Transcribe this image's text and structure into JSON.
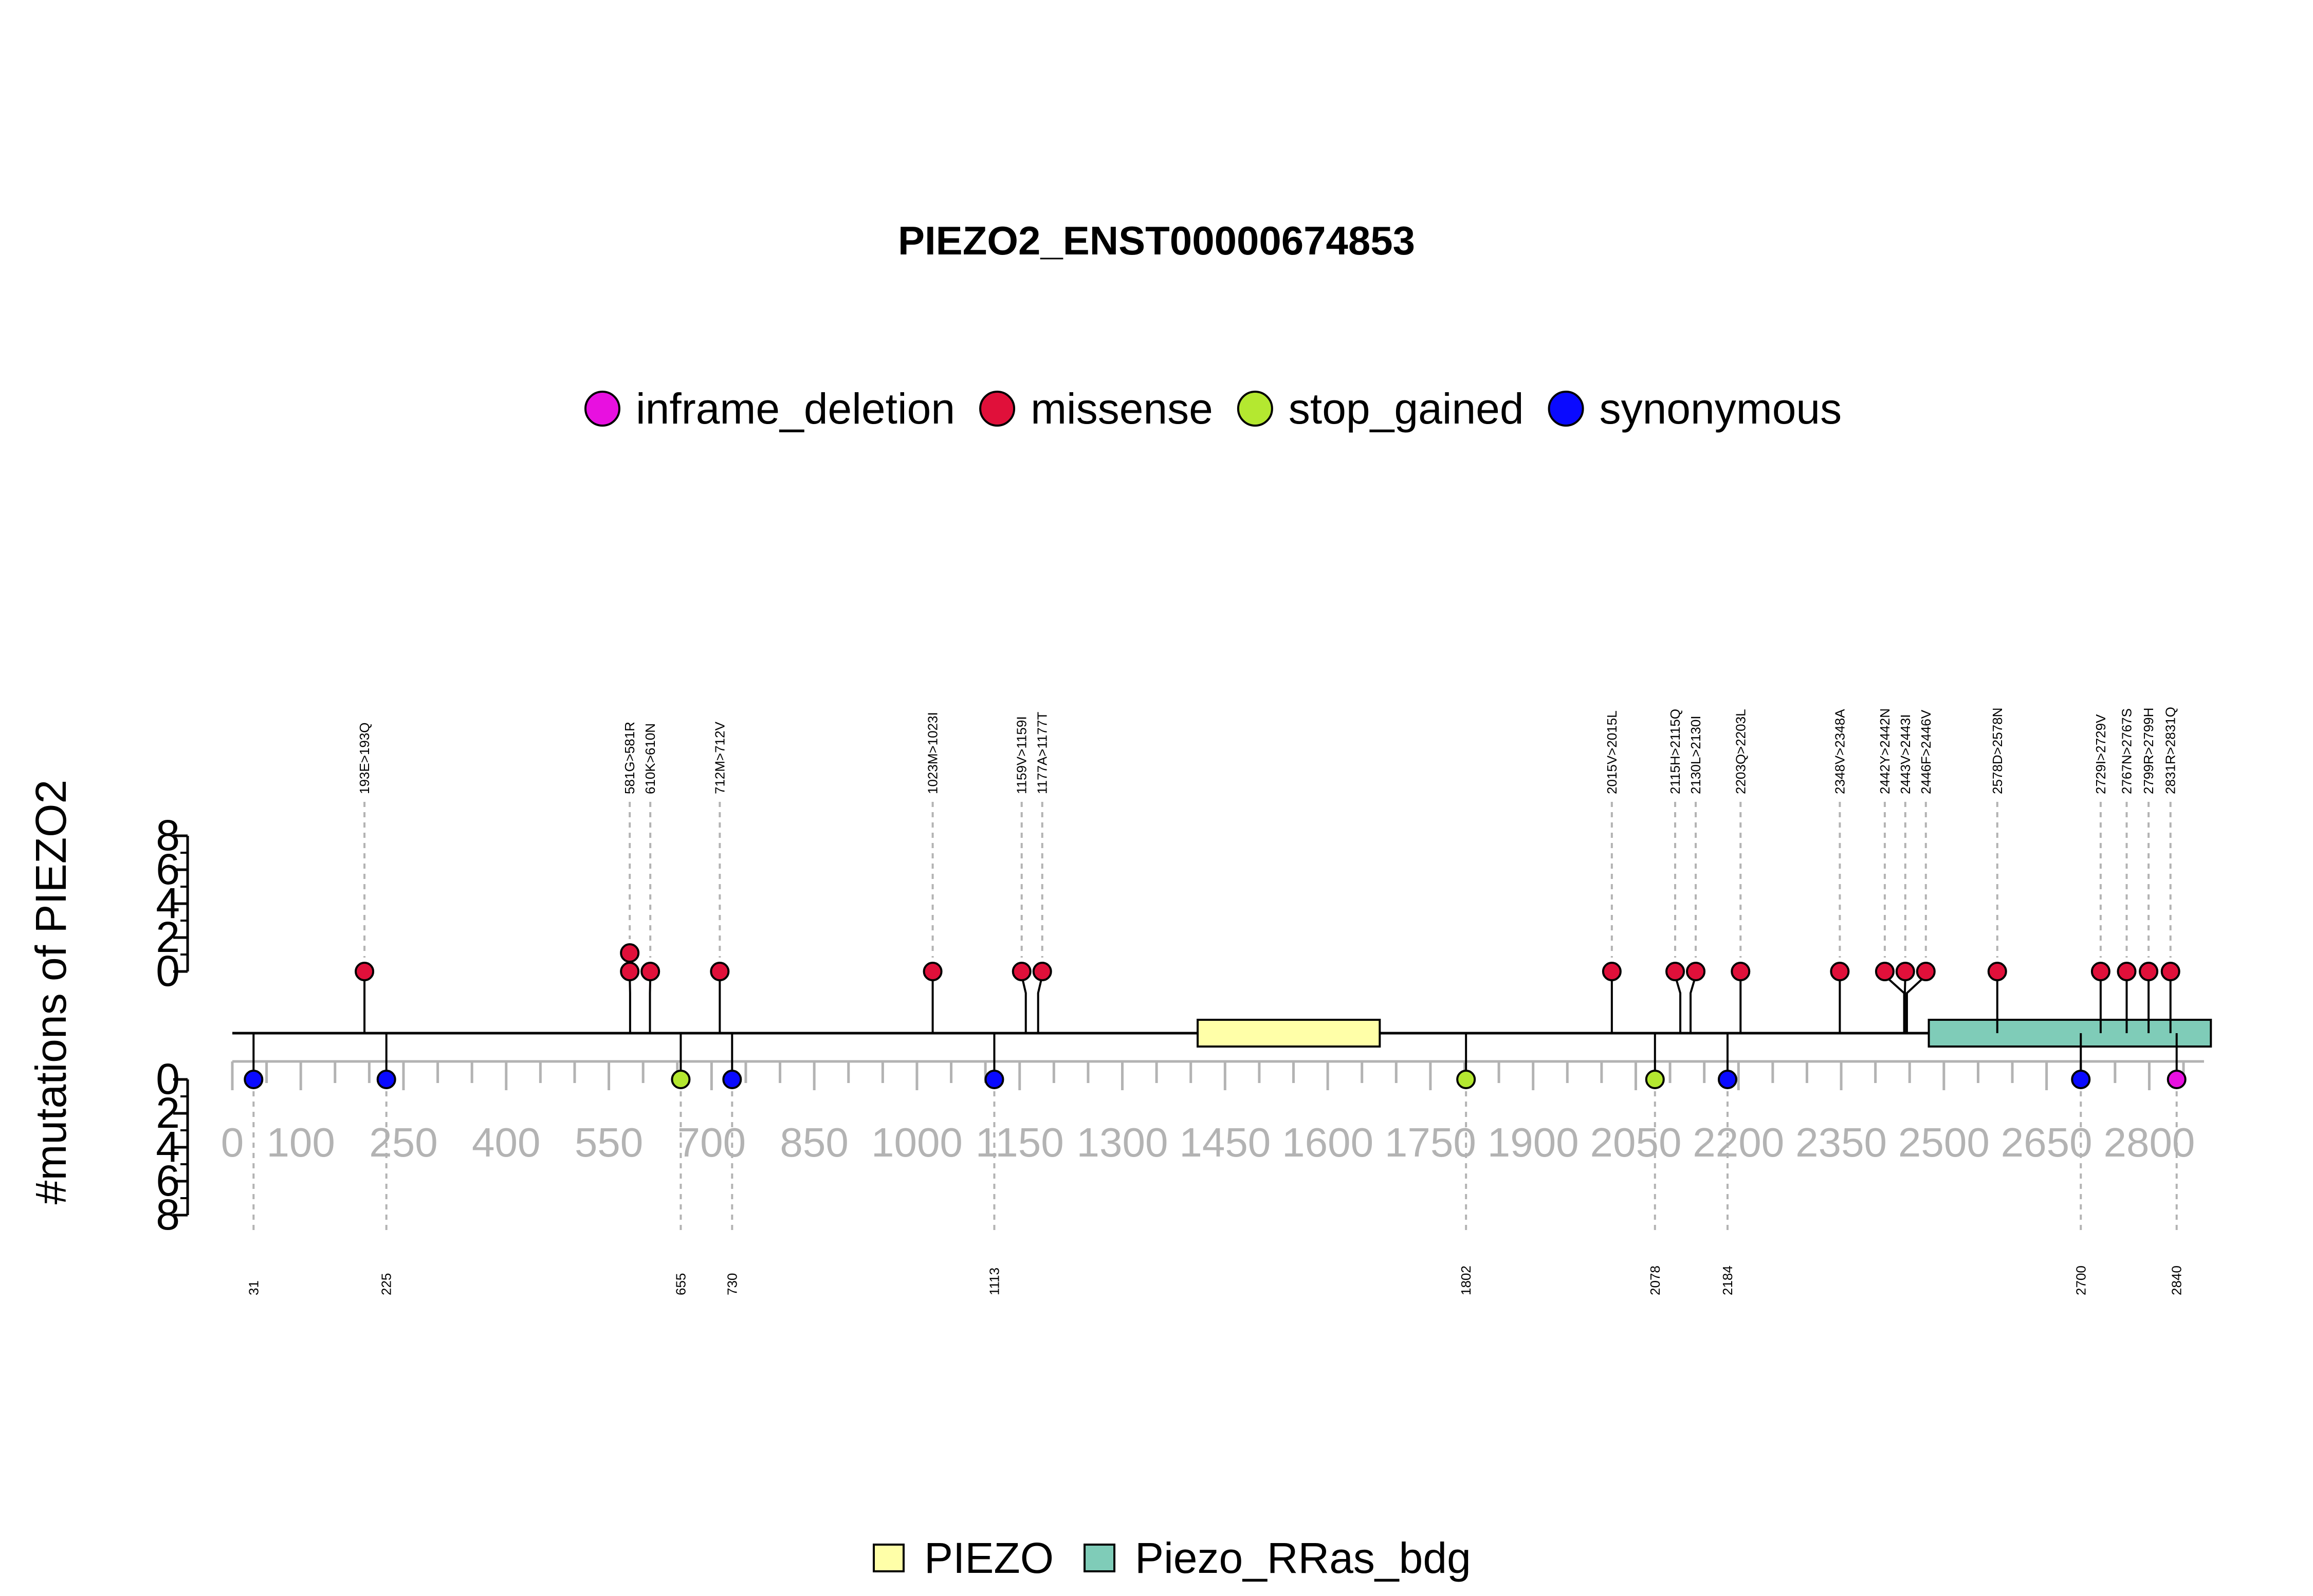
{
  "chart_data": {
    "type": "lollipop",
    "title": "PIEZO2_ENST00000674853",
    "ylabel": "#mutations of PIEZO2",
    "protein_length": 2880,
    "xlim": [
      0,
      2880
    ],
    "x_ticks": [
      "0",
      "100",
      "250",
      "400",
      "550",
      "700",
      "850",
      "1000",
      "1150",
      "1300",
      "1450",
      "1600",
      "1750",
      "1900",
      "2050",
      "2200",
      "2350",
      "2500",
      "2650",
      "2800"
    ],
    "y_ticks_top": [
      "0",
      "2",
      "4",
      "6",
      "8"
    ],
    "y_ticks_bottom": [
      "0",
      "2",
      "4",
      "6",
      "8"
    ],
    "mutation_legend": [
      {
        "key": "inframe_deletion",
        "label": "inframe_deletion",
        "color": "#e810e0"
      },
      {
        "key": "missense",
        "label": "missense",
        "color": "#e0103a"
      },
      {
        "key": "stop_gained",
        "label": "stop_gained",
        "color": "#b4e830"
      },
      {
        "key": "synonymous",
        "label": "synonymous",
        "color": "#0a0aff"
      }
    ],
    "domain_legend": [
      {
        "label": "PIEZO",
        "color": "#ffffa8"
      },
      {
        "label": "Piezo_RRas_bdg",
        "color": "#7fccb8"
      }
    ],
    "domains": [
      {
        "name": "PIEZO",
        "start": 1410,
        "end": 1676
      },
      {
        "name": "Piezo_RRas_bdg",
        "start": 2478,
        "end": 2890
      }
    ],
    "mutations_top": [
      {
        "pos": 193,
        "label": "193E>193Q",
        "type": "missense",
        "count": 1
      },
      {
        "pos": 581,
        "label": "581G>581R",
        "type": "missense",
        "count": 2
      },
      {
        "pos": 610,
        "label": "610K>610N",
        "type": "missense",
        "count": 1
      },
      {
        "pos": 712,
        "label": "712M>712V",
        "type": "missense",
        "count": 1
      },
      {
        "pos": 1023,
        "label": "1023M>1023I",
        "type": "missense",
        "count": 1
      },
      {
        "pos": 1159,
        "label": "1159V>1159I",
        "type": "missense",
        "count": 1
      },
      {
        "pos": 1177,
        "label": "1177A>1177T",
        "type": "missense",
        "count": 1
      },
      {
        "pos": 2015,
        "label": "2015V>2015L",
        "type": "missense",
        "count": 1
      },
      {
        "pos": 2115,
        "label": "2115H>2115Q",
        "type": "missense",
        "count": 1
      },
      {
        "pos": 2130,
        "label": "2130L>2130I",
        "type": "missense",
        "count": 1
      },
      {
        "pos": 2203,
        "label": "2203Q>2203L",
        "type": "missense",
        "count": 1
      },
      {
        "pos": 2348,
        "label": "2348V>2348A",
        "type": "missense",
        "count": 1
      },
      {
        "pos": 2442,
        "label": "2442Y>2442N",
        "type": "missense",
        "count": 1
      },
      {
        "pos": 2443,
        "label": "2443V>2443I",
        "type": "missense",
        "count": 1
      },
      {
        "pos": 2446,
        "label": "2446F>2446V",
        "type": "missense",
        "count": 1
      },
      {
        "pos": 2578,
        "label": "2578D>2578N",
        "type": "missense",
        "count": 1
      },
      {
        "pos": 2729,
        "label": "2729I>2729V",
        "type": "missense",
        "count": 1
      },
      {
        "pos": 2767,
        "label": "2767N>2767S",
        "type": "missense",
        "count": 1
      },
      {
        "pos": 2799,
        "label": "2799R>2799H",
        "type": "missense",
        "count": 1
      },
      {
        "pos": 2831,
        "label": "2831R>2831Q",
        "type": "missense",
        "count": 1
      }
    ],
    "mutations_bottom": [
      {
        "pos": 31,
        "label": "31",
        "type": "synonymous",
        "count": 1
      },
      {
        "pos": 225,
        "label": "225",
        "type": "synonymous",
        "count": 1
      },
      {
        "pos": 655,
        "label": "655",
        "type": "stop_gained",
        "count": 1
      },
      {
        "pos": 730,
        "label": "730",
        "type": "synonymous",
        "count": 1
      },
      {
        "pos": 1113,
        "label": "1113",
        "type": "synonymous",
        "count": 1
      },
      {
        "pos": 1802,
        "label": "1802",
        "type": "stop_gained",
        "count": 1
      },
      {
        "pos": 2078,
        "label": "2078",
        "type": "stop_gained",
        "count": 1
      },
      {
        "pos": 2184,
        "label": "2184",
        "type": "synonymous",
        "count": 1
      },
      {
        "pos": 2700,
        "label": "2700",
        "type": "synonymous",
        "count": 1
      },
      {
        "pos": 2840,
        "label": "2840",
        "type": "inframe_deletion",
        "count": 1
      }
    ]
  }
}
